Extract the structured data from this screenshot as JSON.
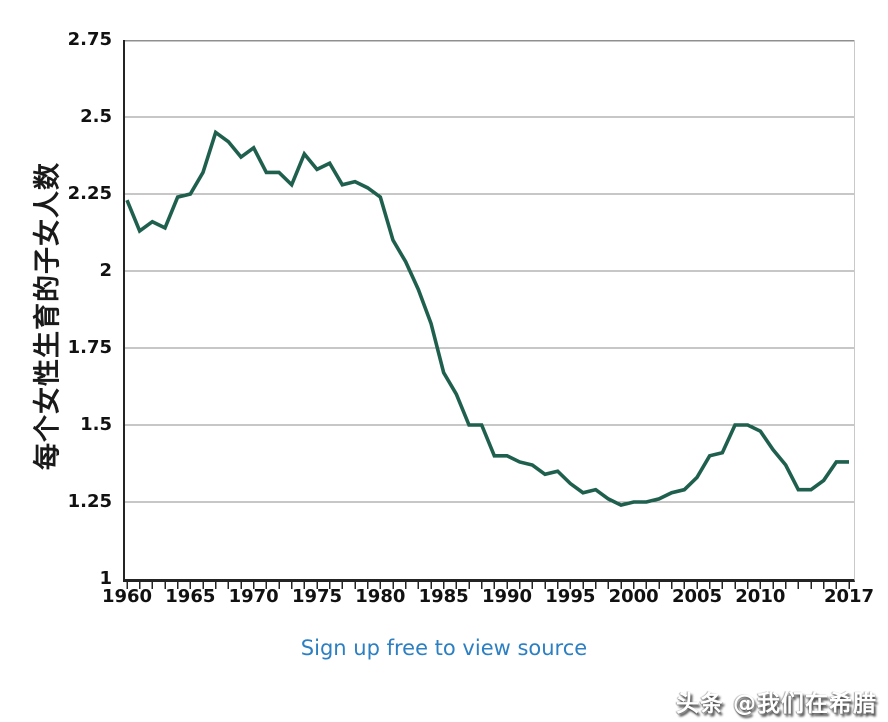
{
  "chart_data": {
    "type": "line",
    "title": "",
    "xlabel": "",
    "ylabel": "每个女性生育的子女人数",
    "x": [
      1960,
      1961,
      1962,
      1963,
      1964,
      1965,
      1966,
      1967,
      1968,
      1969,
      1970,
      1971,
      1972,
      1973,
      1974,
      1975,
      1976,
      1977,
      1978,
      1979,
      1980,
      1981,
      1982,
      1983,
      1984,
      1985,
      1986,
      1987,
      1988,
      1989,
      1990,
      1991,
      1992,
      1993,
      1994,
      1995,
      1996,
      1997,
      1998,
      1999,
      2000,
      2001,
      2002,
      2003,
      2004,
      2005,
      2006,
      2007,
      2008,
      2009,
      2010,
      2011,
      2012,
      2013,
      2014,
      2015,
      2016,
      2017
    ],
    "values": [
      2.23,
      2.13,
      2.16,
      2.14,
      2.24,
      2.25,
      2.32,
      2.45,
      2.42,
      2.37,
      2.4,
      2.32,
      2.32,
      2.28,
      2.38,
      2.33,
      2.35,
      2.28,
      2.29,
      2.27,
      2.24,
      2.1,
      2.03,
      1.94,
      1.83,
      1.67,
      1.6,
      1.5,
      1.5,
      1.4,
      1.4,
      1.38,
      1.37,
      1.34,
      1.35,
      1.31,
      1.28,
      1.29,
      1.26,
      1.24,
      1.25,
      1.25,
      1.26,
      1.28,
      1.29,
      1.33,
      1.4,
      1.41,
      1.5,
      1.5,
      1.48,
      1.42,
      1.37,
      1.29,
      1.29,
      1.32,
      1.38,
      1.38
    ],
    "xlim": [
      1960,
      2017
    ],
    "ylim": [
      1,
      2.75
    ],
    "yticks": [
      1,
      1.25,
      1.5,
      1.75,
      2,
      2.25,
      2.5,
      2.75
    ],
    "ytick_labels": [
      "1",
      "1.25",
      "1.5",
      "1.75",
      "2",
      "2.25",
      "2.5",
      "2.75"
    ],
    "xtick_years": [
      1960,
      1965,
      1970,
      1975,
      1980,
      1985,
      1990,
      1995,
      2000,
      2005,
      2010,
      2017
    ],
    "grid": true,
    "legend": "none",
    "line_color": "#1f5f4d",
    "grid_color": "#8f8f8f",
    "axis_color": "#242424",
    "right_border_color": "#c9c9c9"
  },
  "footer": {
    "source_link_label": "Sign up free to view source",
    "link_color": "#2b7fc2"
  },
  "watermark": {
    "text": "头条 @我们在希腊"
  }
}
